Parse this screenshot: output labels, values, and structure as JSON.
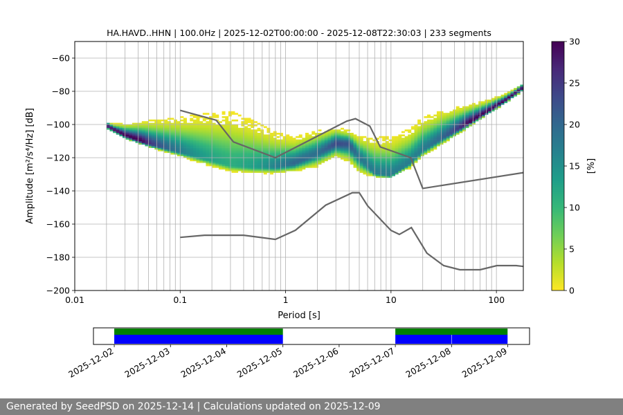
{
  "chart_data": [
    {
      "type": "heatmap",
      "title": "HA.HAVD..HHN | 100.0Hz | 2025-12-02T00:00:00 - 2025-12-08T22:30:03 | 233 segments",
      "xlabel": "Period [s]",
      "ylabel": "Amplitude [m²/s⁴/Hz] [dB]",
      "x_scale": "log",
      "xlim": [
        0.01,
        180
      ],
      "ylim": [
        -200,
        -50
      ],
      "x_ticks": [
        {
          "value": 0.01,
          "label": "0.01"
        },
        {
          "value": 0.1,
          "label": "0.1"
        },
        {
          "value": 1,
          "label": "1"
        },
        {
          "value": 10,
          "label": "10"
        },
        {
          "value": 100,
          "label": "100"
        }
      ],
      "y_ticks": [
        -200,
        -180,
        -160,
        -140,
        -120,
        -100,
        -80,
        -60
      ],
      "grid": true,
      "colorbar": {
        "label": "[%]",
        "min": 0,
        "max": 30,
        "ticks": [
          0,
          5,
          10,
          15,
          20,
          25,
          30
        ],
        "colormap": "viridis_r"
      },
      "colormap_stops": [
        "#fde725",
        "#b5de2b",
        "#6ece58",
        "#35b779",
        "#1f9e89",
        "#26828e",
        "#31688e",
        "#3e4989",
        "#482878",
        "#440154"
      ],
      "mode_line": {
        "period": [
          0.02,
          0.03,
          0.05,
          0.1,
          0.2,
          0.3,
          0.5,
          0.8,
          1.2,
          2,
          3,
          4,
          5,
          7,
          10,
          15,
          20,
          30,
          50,
          80,
          120,
          180
        ],
        "db": [
          -101,
          -107,
          -112,
          -117,
          -122,
          -125,
          -126,
          -126,
          -124,
          -118,
          -112,
          -112,
          -120,
          -130,
          -131,
          -124,
          -116,
          -109,
          -101,
          -93,
          -86,
          -78
        ]
      },
      "spread_band": {
        "period": [
          0.02,
          0.03,
          0.05,
          0.1,
          0.2,
          0.3,
          0.5,
          0.8,
          1.2,
          2,
          3,
          4,
          5,
          7,
          10,
          15,
          20,
          30,
          50,
          80,
          120,
          180
        ],
        "upper_db": [
          -100,
          -100,
          -98,
          -96,
          -93,
          -92,
          -98,
          -105,
          -108,
          -104,
          -102,
          -104,
          -107,
          -108,
          -108,
          -103,
          -96,
          -92,
          -89,
          -86,
          -82,
          -76
        ],
        "lower_db": [
          -103,
          -109,
          -114,
          -120,
          -126,
          -129,
          -130,
          -130,
          -129,
          -126,
          -120,
          -123,
          -130,
          -132,
          -132,
          -127,
          -120,
          -113,
          -104,
          -95,
          -88,
          -80
        ]
      },
      "noise_models": [
        {
          "period": [
            0.1,
            0.17,
            0.4,
            0.8,
            1.24,
            2.4,
            4.3,
            5.0,
            6.0,
            10.0,
            12.0,
            15.6,
            21.9,
            31.6,
            45.0,
            70.0,
            101.0,
            154.0,
            180
          ],
          "db": [
            -168,
            -166.7,
            -166.7,
            -169.2,
            -163.7,
            -148.6,
            -141.1,
            -141.1,
            -149.0,
            -163.8,
            -166.2,
            -162.1,
            -177.5,
            -185.0,
            -187.5,
            -187.5,
            -185.0,
            -185.0,
            -185.5
          ]
        },
        {
          "period": [
            0.1,
            0.22,
            0.32,
            0.8,
            3.8,
            4.6,
            6.3,
            7.9,
            15.4,
            20.0,
            180
          ],
          "db": [
            -91.5,
            -97.4,
            -110.5,
            -120.0,
            -98.0,
            -96.5,
            -101.0,
            -113.5,
            -120.0,
            -138.5,
            -129.0
          ]
        }
      ]
    },
    {
      "type": "timeline",
      "x_ticks": [
        "2025-12-02",
        "2025-12-03",
        "2025-12-04",
        "2025-12-05",
        "2025-12-06",
        "2025-12-07",
        "2025-12-08",
        "2025-12-09"
      ],
      "xlim": [
        "2025-12-01T15:07",
        "2025-12-09T09:18"
      ],
      "coverage_colors": {
        "data": "#0000ff",
        "used": "#008000"
      },
      "data_segments": [
        [
          "2025-12-02T00:00",
          "2025-12-05T00:00"
        ],
        [
          "2025-12-07T00:00",
          "2025-12-07T23:55"
        ],
        [
          "2025-12-08T00:05",
          "2025-12-08T23:55"
        ]
      ],
      "used_segments": [
        [
          "2025-12-02T00:00",
          "2025-12-05T00:00"
        ],
        [
          "2025-12-07T00:00",
          "2025-12-08T23:55"
        ]
      ]
    }
  ],
  "footer": {
    "text": "Generated by SeedPSD on 2025-12-14 | Calculations updated on 2025-12-09"
  }
}
